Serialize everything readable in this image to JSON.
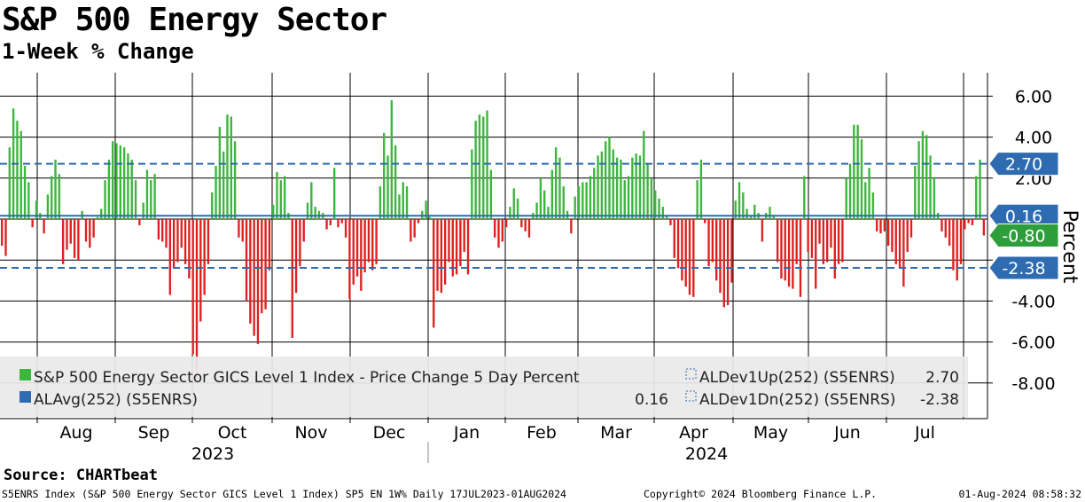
{
  "header": {
    "title": "S&P 500 Energy Sector",
    "subtitle": "1-Week % Change"
  },
  "chart_data": {
    "type": "bar",
    "ylabel": "Percent",
    "ylim": [
      -9.5,
      7.5
    ],
    "yticks": [
      6,
      4,
      2,
      -2,
      -4,
      -6,
      -8
    ],
    "ytick_labels": [
      "6.00",
      "4.00",
      "2.00",
      "",
      "-4.00",
      "-6.00",
      "-8.00"
    ],
    "months": [
      "Aug",
      "Sep",
      "Oct",
      "Nov",
      "Dec",
      "Jan",
      "Feb",
      "Mar",
      "Apr",
      "May",
      "Jun",
      "Jul"
    ],
    "years": [
      "2023",
      "2024"
    ],
    "grid": true,
    "date_range": [
      "2023-07-17",
      "2024-08-01"
    ],
    "reference_lines": {
      "up": 2.7,
      "avg": 0.16,
      "down": -2.38
    },
    "value_tags": [
      {
        "label": "2.70",
        "value": 2.7,
        "color": "#2e6bb0"
      },
      {
        "label": "0.16",
        "value": 0.16,
        "color": "#2e6bb0"
      },
      {
        "label": "-0.80",
        "value": -0.8,
        "color": "#2e9e3a"
      },
      {
        "label": "-2.38",
        "value": -2.38,
        "color": "#2e6bb0"
      }
    ],
    "legend": {
      "placement": "bottom",
      "series_label": "S&P 500 Energy Sector GICS Level 1 Index - Price Change 5 Day Percent",
      "avg_label": "ALAvg(252) (S5ENRS)",
      "avg_value": "0.16",
      "up_label": "ALDev1Up(252) (S5ENRS)",
      "up_value": "2.70",
      "down_label": "ALDev1Dn(252) (S5ENRS)",
      "down_value": "-2.38"
    },
    "series": [
      {
        "name": "S&P 500 Energy Sector GICS Level 1 Index - Price Change 5 Day Percent",
        "colors": {
          "positive": "#3cb63c",
          "negative": "#e02020"
        },
        "values": [
          -1.3,
          -1.8,
          3.5,
          5.4,
          4.8,
          4.3,
          2.6,
          1.8,
          -0.4,
          0.9,
          0.3,
          -0.7,
          1.2,
          2.1,
          2.9,
          2.2,
          -2.2,
          -1.5,
          -1.2,
          -1.9,
          -2.0,
          0.4,
          -1.1,
          -1.4,
          -0.9,
          0.1,
          0.5,
          1.9,
          2.9,
          3.8,
          3.7,
          3.6,
          3.5,
          3.2,
          2.9,
          1.9,
          -0.3,
          0.8,
          2.4,
          1.9,
          2.2,
          -1.0,
          -1.1,
          -1.4,
          -3.7,
          -2.4,
          -2.1,
          -1.4,
          -2.2,
          -2.9,
          -6.6,
          -7.8,
          -5.0,
          -3.7,
          -2.2,
          1.3,
          2.6,
          4.5,
          3.3,
          5.1,
          5.0,
          3.8,
          -0.9,
          -1.1,
          -4.0,
          -5.1,
          -5.7,
          -6.1,
          -4.6,
          -4.4,
          -2.5,
          0.7,
          2.3,
          1.9,
          2.1,
          0.3,
          -5.8,
          -3.6,
          -2.3,
          -1.1,
          0.8,
          1.8,
          0.6,
          0.4,
          0.3,
          -0.5,
          -0.3,
          2.5,
          -0.4,
          -0.2,
          -0.9,
          -3.9,
          -3.2,
          -2.8,
          -3.5,
          -2.6,
          -2.1,
          -2.5,
          -2.2,
          1.6,
          4.2,
          3.1,
          5.8,
          3.6,
          1.2,
          1.8,
          1.6,
          -1.1,
          -0.9,
          -0.2,
          0.4,
          0.9,
          0.1,
          -5.3,
          -3.5,
          -3.6,
          -3.2,
          -2.1,
          -2.8,
          -2.7,
          -2.3,
          -1.6,
          -2.7,
          3.4,
          4.8,
          5.1,
          5.0,
          5.3,
          2.4,
          -0.9,
          -1.4,
          -1.1,
          -0.4,
          0.6,
          1.5,
          1.0,
          -0.4,
          -0.6,
          -0.9,
          0.3,
          0.8,
          2.0,
          1.4,
          0.6,
          2.4,
          3.5,
          3.0,
          1.6,
          0.4,
          -0.7,
          1.1,
          1.6,
          1.8,
          1.8,
          2.1,
          2.5,
          3.1,
          3.3,
          3.8,
          4.0,
          3.4,
          3.0,
          2.9,
          1.9,
          2.1,
          3.0,
          3.2,
          3.1,
          4.3,
          2.7,
          2.0,
          1.4,
          1.0,
          0.6,
          0.2,
          -0.3,
          -1.9,
          -2.4,
          -3.0,
          -3.3,
          -3.7,
          -3.8,
          1.9,
          2.9,
          -0.2,
          -2.3,
          -2.1,
          -3.0,
          -3.6,
          -4.3,
          -4.2,
          -3.1,
          0.9,
          1.8,
          1.3,
          0.5,
          0.2,
          0.7,
          0.3,
          -1.1,
          0.3,
          0.6,
          0.2,
          -2.1,
          -2.9,
          -3.0,
          -3.3,
          -3.4,
          -2.2,
          -3.8,
          2.1,
          -1.6,
          -1.9,
          -3.4,
          -1.2,
          -2.2,
          -2.1,
          -1.4,
          -2.9,
          -2.2,
          -2.1,
          2.0,
          2.7,
          4.6,
          4.6,
          3.9,
          1.8,
          2.5,
          1.3,
          -0.6,
          -0.7,
          -0.6,
          -1.3,
          -1.6,
          -2.2,
          -2.4,
          -3.3,
          -1.6,
          -0.9,
          2.6,
          3.8,
          4.3,
          4.1,
          3.1,
          2.0,
          0.3,
          -0.6,
          -0.9,
          -1.3,
          -2.5,
          -3.0,
          -2.2,
          -0.5,
          -0.2,
          -0.3,
          2.1,
          2.9,
          -0.8
        ]
      }
    ]
  },
  "footer": {
    "source": "Source: CHARTbeat",
    "left": "S5ENRS Index (S&P 500 Energy Sector GICS Level 1 Index) SP5 EN 1W% Daily 17JUL2023-01AUG2024",
    "center": "Copyright© 2024 Bloomberg Finance L.P.",
    "right": "01-Aug-2024 08:58:32"
  }
}
